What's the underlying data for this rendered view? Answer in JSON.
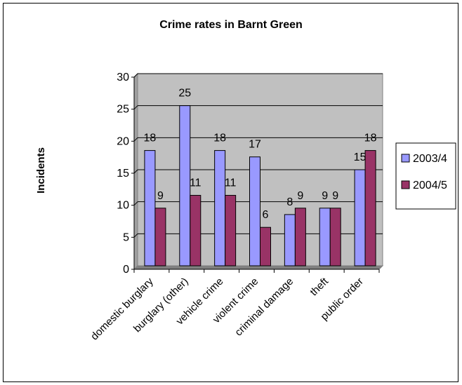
{
  "chart_data": {
    "type": "bar",
    "title": "Crime rates in Barnt Green",
    "ylabel": "Incidents",
    "xlabel": "",
    "ylim": [
      0,
      30
    ],
    "yticks": [
      "0",
      "5",
      "10",
      "15",
      "20",
      "25",
      "30"
    ],
    "gridlines": true,
    "legend_position": "right",
    "categories": [
      "domestic burglary",
      "burglary (other)",
      "vehicle crime",
      "violent crime",
      "criminal damage",
      "theft",
      "public order"
    ],
    "series": [
      {
        "name": "2003/4",
        "values": [
          18,
          25,
          18,
          17,
          8,
          9,
          15
        ],
        "labels": [
          "18",
          "25",
          "18",
          "17",
          "8",
          "9",
          "15"
        ],
        "color": "#9999ff"
      },
      {
        "name": "2004/5",
        "values": [
          9,
          11,
          11,
          6,
          9,
          9,
          18
        ],
        "labels": [
          "9",
          "11",
          "11",
          "6",
          "9",
          "9",
          "18"
        ],
        "color": "#993366"
      }
    ],
    "plot_background": "#c0c0c0"
  }
}
